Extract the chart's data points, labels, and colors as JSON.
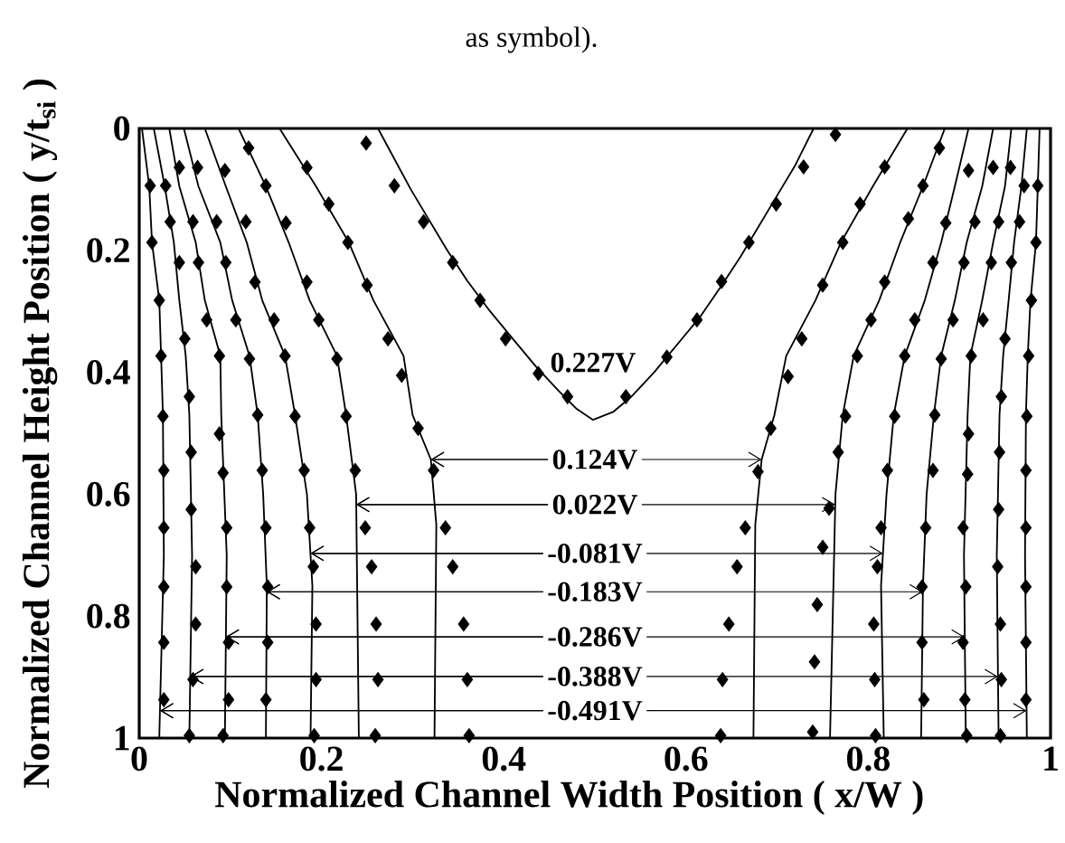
{
  "chart_data": {
    "type": "line",
    "xlabel": "Normalized Channel Width Position ( x/W )",
    "ylabel": "Normalized Channel Height Position ( y/t$_{si}$ )",
    "xlim": [
      0,
      1
    ],
    "ylim": [
      1,
      0
    ],
    "xticks": [
      0,
      0.2,
      0.4,
      0.6,
      0.8,
      1
    ],
    "yticks": [
      0,
      0.2,
      0.4,
      0.6,
      0.8,
      1
    ],
    "annotations": [
      "as symbol).",
      {
        "text": "0.227V",
        "x": 0.498,
        "y": 0.478
      },
      {
        "text": "0.124V",
        "x": 0.32,
        "y": 0.543
      },
      {
        "text": "0.022V",
        "x": 0.238,
        "y": 0.617
      },
      {
        "text": "-0.081V",
        "x": 0.188,
        "y": 0.697
      },
      {
        "text": "-0.183V",
        "x": 0.14,
        "y": 0.76
      },
      {
        "text": "-0.286V",
        "x": 0.095,
        "y": 0.834
      },
      {
        "text": "-0.388V",
        "x": 0.056,
        "y": 0.899
      },
      {
        "text": "-0.491V",
        "x": 0.023,
        "y": 0.955
      }
    ],
    "series": [
      {
        "color": "#000000",
        "x": [
          0.262,
          0.28,
          0.298,
          0.318,
          0.338,
          0.36,
          0.385,
          0.41,
          0.435,
          0.46,
          0.48,
          0.498,
          0.52,
          0.54,
          0.565,
          0.59,
          0.615,
          0.638,
          0.66,
          0.68,
          0.7,
          0.72,
          0.74
        ],
        "values": [
          0,
          0.05,
          0.1,
          0.15,
          0.2,
          0.25,
          0.3,
          0.345,
          0.39,
          0.43,
          0.46,
          0.478,
          0.465,
          0.44,
          0.4,
          0.355,
          0.31,
          0.26,
          0.21,
          0.16,
          0.11,
          0.06,
          0
        ]
      },
      {
        "color": "#000000",
        "x": [
          0.154,
          0.194,
          0.23,
          0.257,
          0.29,
          0.3,
          0.32,
          0.326,
          0.324,
          null,
          0.843,
          0.805,
          0.77,
          0.742,
          0.71,
          0.697,
          0.683,
          0.676,
          0.674
        ],
        "values": [
          0,
          0.095,
          0.187,
          0.282,
          0.373,
          0.47,
          0.543,
          0.65,
          1,
          null,
          0,
          0.095,
          0.187,
          0.282,
          0.373,
          0.47,
          0.543,
          0.65,
          1
        ]
      },
      {
        "color": "#000000",
        "x": [
          0.109,
          0.139,
          0.164,
          0.187,
          0.217,
          0.227,
          0.238,
          0.241,
          null,
          0.884,
          0.86,
          0.835,
          0.812,
          0.784,
          0.772,
          0.764,
          0.758
        ],
        "values": [
          0,
          0.095,
          0.187,
          0.282,
          0.373,
          0.47,
          0.6,
          1,
          null,
          0,
          0.095,
          0.187,
          0.282,
          0.373,
          0.47,
          0.6,
          1
        ]
      },
      {
        "color": "#000000",
        "x": [
          0.072,
          0.095,
          0.118,
          0.135,
          0.16,
          0.171,
          0.184,
          0.19,
          0.188,
          null,
          0.91,
          0.895,
          0.88,
          0.862,
          0.84,
          0.828,
          0.82,
          0.814,
          0.817
        ],
        "values": [
          0,
          0.095,
          0.187,
          0.282,
          0.373,
          0.47,
          0.6,
          0.75,
          1,
          null,
          0,
          0.095,
          0.187,
          0.282,
          0.373,
          0.47,
          0.6,
          0.75,
          1
        ]
      },
      {
        "color": "#000000",
        "x": [
          0.049,
          0.065,
          0.089,
          0.102,
          0.121,
          0.13,
          0.136,
          0.14,
          0.139,
          null,
          0.937,
          0.925,
          0.908,
          0.895,
          0.88,
          0.872,
          0.864,
          0.86,
          0.858
        ],
        "values": [
          0,
          0.095,
          0.187,
          0.282,
          0.373,
          0.47,
          0.6,
          0.75,
          1,
          null,
          0,
          0.095,
          0.187,
          0.282,
          0.373,
          0.47,
          0.6,
          0.75,
          1
        ]
      },
      {
        "color": "#000000",
        "x": [
          0.033,
          0.044,
          0.062,
          0.072,
          0.089,
          0.09,
          0.096,
          0.094,
          null,
          0.957,
          0.95,
          0.937,
          0.925,
          0.912,
          0.909,
          0.905,
          0.907
        ],
        "values": [
          0,
          0.095,
          0.187,
          0.282,
          0.373,
          0.47,
          0.7,
          1,
          null,
          0,
          0.095,
          0.187,
          0.282,
          0.373,
          0.47,
          0.7,
          1
        ]
      },
      {
        "color": "#000000",
        "x": [
          0.016,
          0.028,
          0.038,
          0.044,
          0.051,
          0.055,
          0.058,
          0.055,
          null,
          0.974,
          0.968,
          0.96,
          0.954,
          0.948,
          0.944,
          0.941,
          0.943
        ],
        "values": [
          0,
          0.095,
          0.187,
          0.282,
          0.373,
          0.47,
          0.7,
          1,
          null,
          0,
          0.095,
          0.187,
          0.282,
          0.373,
          0.47,
          0.7,
          1
        ]
      },
      {
        "color": "#000000",
        "x": [
          0.003,
          0.011,
          0.014,
          0.022,
          0.024,
          0.026,
          0.027,
          0.022,
          null,
          0.988,
          0.986,
          0.984,
          0.978,
          0.975,
          0.973,
          0.972,
          0.974
        ],
        "values": [
          0,
          0.095,
          0.187,
          0.282,
          0.373,
          0.47,
          0.7,
          1,
          null,
          0,
          0.095,
          0.187,
          0.282,
          0.373,
          0.47,
          0.7,
          1
        ]
      },
      {
        "type": "scatter",
        "color": "#000000",
        "marker": "diamond",
        "x": [
          0.249,
          0.28,
          0.312,
          0.344,
          0.374,
          0.402,
          0.438,
          0.47,
          0.534,
          0.579,
          0.612,
          0.639,
          0.669,
          0.699,
          0.729,
          0.764
        ],
        "values": [
          0.024,
          0.094,
          0.153,
          0.22,
          0.282,
          0.345,
          0.402,
          0.44,
          0.44,
          0.375,
          0.314,
          0.251,
          0.187,
          0.124,
          0.063,
          0.01
        ]
      },
      {
        "type": "scatter",
        "color": "#000000",
        "marker": "diamond",
        "x": [
          0.184,
          0.208,
          0.229,
          0.25,
          0.273,
          0.288,
          0.306,
          0.323,
          0.336,
          0.344,
          0.356,
          0.36,
          0.362,
          0.818,
          0.791,
          0.772,
          0.75,
          0.727,
          0.712,
          0.693,
          0.679,
          0.665,
          0.656,
          0.647,
          0.64,
          0.638
        ],
        "values": [
          0.064,
          0.124,
          0.187,
          0.257,
          0.345,
          0.405,
          0.492,
          0.561,
          0.655,
          0.719,
          0.813,
          0.904,
          0.996,
          0.063,
          0.124,
          0.187,
          0.257,
          0.345,
          0.407,
          0.492,
          0.563,
          0.655,
          0.719,
          0.813,
          0.904,
          0.996
        ]
      },
      {
        "type": "scatter",
        "color": "#000000",
        "marker": "diamond",
        "x": [
          0.12,
          0.139,
          0.161,
          0.184,
          0.197,
          0.217,
          0.227,
          0.237,
          0.248,
          0.255,
          0.26,
          0.262,
          0.259,
          0.878,
          0.86,
          0.844,
          0.818,
          0.803,
          0.788,
          0.775,
          0.767,
          0.757,
          0.75,
          0.744,
          0.741,
          0.739
        ],
        "values": [
          0.032,
          0.094,
          0.155,
          0.252,
          0.314,
          0.378,
          0.472,
          0.561,
          0.655,
          0.719,
          0.813,
          0.904,
          0.996,
          0.032,
          0.094,
          0.148,
          0.252,
          0.314,
          0.373,
          0.472,
          0.531,
          0.623,
          0.687,
          0.781,
          0.875,
          0.99
        ]
      },
      {
        "type": "scatter",
        "color": "#000000",
        "marker": "diamond",
        "x": [
          0.094,
          0.117,
          0.127,
          0.148,
          0.16,
          0.171,
          0.181,
          0.187,
          0.191,
          0.194,
          0.194,
          0.192,
          0.91,
          0.885,
          0.871,
          0.851,
          0.84,
          0.829,
          0.821,
          0.814,
          0.81,
          0.806,
          0.807,
          0.808
        ],
        "values": [
          0.069,
          0.153,
          0.252,
          0.314,
          0.373,
          0.472,
          0.561,
          0.655,
          0.719,
          0.813,
          0.904,
          0.996,
          0.069,
          0.155,
          0.22,
          0.314,
          0.373,
          0.472,
          0.561,
          0.655,
          0.719,
          0.813,
          0.904,
          0.996
        ]
      },
      {
        "type": "scatter",
        "color": "#000000",
        "marker": "diamond",
        "x": [
          0.064,
          0.085,
          0.095,
          0.106,
          0.121,
          0.13,
          0.135,
          0.139,
          0.141,
          0.141,
          0.139,
          0.937,
          0.917,
          0.905,
          0.893,
          0.88,
          0.873,
          0.871,
          0.863,
          0.859,
          0.859,
          0.861
        ],
        "values": [
          0.064,
          0.153,
          0.22,
          0.314,
          0.378,
          0.47,
          0.561,
          0.655,
          0.752,
          0.843,
          0.937,
          0.064,
          0.153,
          0.22,
          0.314,
          0.378,
          0.47,
          0.561,
          0.655,
          0.752,
          0.843,
          0.937
        ]
      },
      {
        "type": "scatter",
        "color": "#000000",
        "marker": "diamond",
        "x": [
          0.044,
          0.059,
          0.065,
          0.074,
          0.088,
          0.088,
          0.092,
          0.096,
          0.096,
          0.098,
          0.098,
          0.092,
          0.956,
          0.943,
          0.935,
          0.926,
          0.913,
          0.91,
          0.909,
          0.904,
          0.907,
          0.904,
          0.906,
          0.908
        ],
        "values": [
          0.064,
          0.153,
          0.22,
          0.314,
          0.373,
          0.501,
          0.565,
          0.655,
          0.752,
          0.843,
          0.937,
          0.996,
          0.064,
          0.153,
          0.22,
          0.314,
          0.373,
          0.501,
          0.567,
          0.655,
          0.752,
          0.843,
          0.937,
          0.996
        ]
      },
      {
        "type": "scatter",
        "color": "#000000",
        "marker": "diamond",
        "x": [
          0.029,
          0.034,
          0.044,
          0.05,
          0.055,
          0.057,
          0.057,
          0.062,
          0.062,
          0.059,
          0.055,
          0.971,
          0.966,
          0.957,
          0.95,
          0.946,
          0.944,
          0.943,
          0.942,
          0.945,
          0.946,
          0.945
        ],
        "values": [
          0.094,
          0.153,
          0.22,
          0.345,
          0.44,
          0.531,
          0.625,
          0.719,
          0.813,
          0.904,
          0.996,
          0.094,
          0.153,
          0.22,
          0.345,
          0.44,
          0.531,
          0.625,
          0.719,
          0.813,
          0.904,
          0.996
        ]
      },
      {
        "type": "scatter",
        "color": "#000000",
        "marker": "diamond",
        "x": [
          0.012,
          0.014,
          0.022,
          0.024,
          0.026,
          0.027,
          0.027,
          0.027,
          0.027,
          0.027,
          0.986,
          0.984,
          0.979,
          0.976,
          0.974,
          0.973,
          0.973,
          0.973,
          0.973,
          0.973
        ],
        "values": [
          0.094,
          0.187,
          0.282,
          0.373,
          0.472,
          0.561,
          0.655,
          0.752,
          0.843,
          0.937,
          0.094,
          0.187,
          0.282,
          0.373,
          0.472,
          0.561,
          0.655,
          0.752,
          0.843,
          0.937
        ]
      }
    ]
  }
}
